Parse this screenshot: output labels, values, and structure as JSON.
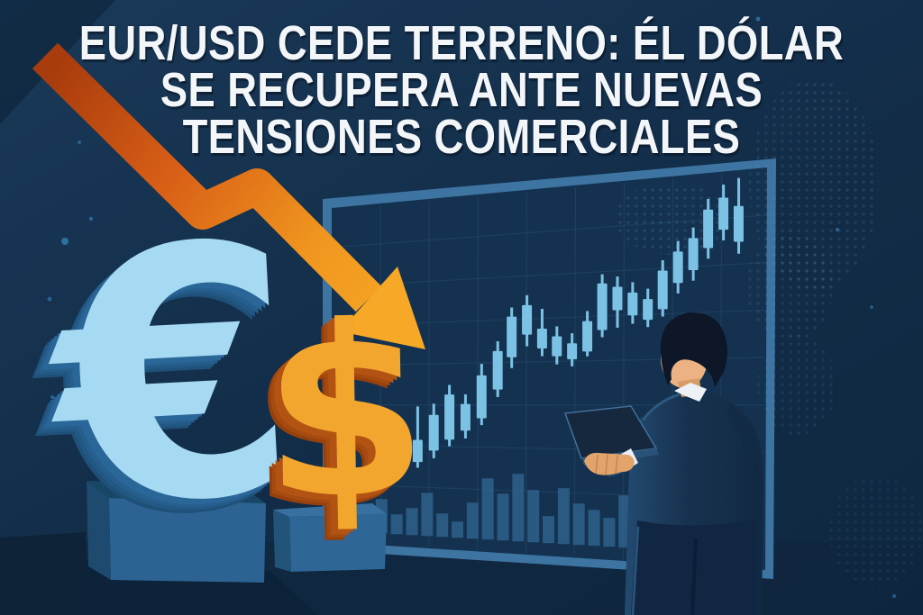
{
  "title": {
    "lines": [
      "EUR/USD CEDE TERRENO: ÉL DÓLAR",
      "SE RECUPERA ANTE NUEVAS",
      "TENSIONES COMERCIALES"
    ]
  },
  "symbols": {
    "euro": "€",
    "dollar": "$"
  },
  "palette": {
    "background": "#132e4a",
    "headline_text": "#f3f6f9",
    "arrow_dark": "#a93c0d",
    "arrow_mid": "#e2741c",
    "arrow_bright": "#f6a826",
    "euro_face": "#a6d9f2",
    "euro_side": "#2a6698",
    "dollar_face": "#f3a62e",
    "dollar_side": "#b25313",
    "board_frame": "#3d74a2",
    "board_fill": "#14324f",
    "grid_line": "#24496d",
    "candle": "#7cc2e5",
    "volume_bar": "#31648f",
    "pedestal_front": "#2d6392",
    "pedestal_top": "#174765",
    "suit": "#1b3a5c",
    "skin": "#ecb283",
    "hair": "#0d1727",
    "laptop": "#16283e"
  },
  "chart_data": {
    "type": "candlestick",
    "description": "Stylized rising price chart with pullbacks, drawn on the wall board",
    "legend_position": "none",
    "grid": true,
    "candles": [
      [
        0.088,
        0.69,
        0.715,
        0.785,
        0.81
      ],
      [
        0.124,
        0.7,
        0.73,
        0.775,
        0.8
      ],
      [
        0.161,
        0.637,
        0.664,
        0.762,
        0.781
      ],
      [
        0.198,
        0.594,
        0.69,
        0.754,
        0.77
      ],
      [
        0.235,
        0.586,
        0.618,
        0.72,
        0.742
      ],
      [
        0.271,
        0.533,
        0.56,
        0.688,
        0.707
      ],
      [
        0.308,
        0.56,
        0.587,
        0.662,
        0.684
      ],
      [
        0.345,
        0.475,
        0.507,
        0.627,
        0.646
      ],
      [
        0.382,
        0.413,
        0.44,
        0.547,
        0.568
      ],
      [
        0.414,
        0.321,
        0.346,
        0.458,
        0.488
      ],
      [
        0.449,
        0.289,
        0.316,
        0.397,
        0.429
      ],
      [
        0.484,
        0.328,
        0.382,
        0.436,
        0.457
      ],
      [
        0.518,
        0.377,
        0.404,
        0.458,
        0.48
      ],
      [
        0.553,
        0.397,
        0.424,
        0.467,
        0.486
      ],
      [
        0.588,
        0.339,
        0.366,
        0.447,
        0.46
      ],
      [
        0.622,
        0.243,
        0.267,
        0.391,
        0.41
      ],
      [
        0.657,
        0.251,
        0.278,
        0.34,
        0.386
      ],
      [
        0.692,
        0.268,
        0.295,
        0.355,
        0.377
      ],
      [
        0.727,
        0.287,
        0.314,
        0.368,
        0.387
      ],
      [
        0.761,
        0.215,
        0.242,
        0.342,
        0.361
      ],
      [
        0.796,
        0.168,
        0.195,
        0.276,
        0.303
      ],
      [
        0.831,
        0.136,
        0.163,
        0.245,
        0.272
      ],
      [
        0.865,
        0.066,
        0.093,
        0.191,
        0.218
      ],
      [
        0.9,
        0.033,
        0.066,
        0.147,
        0.174
      ],
      [
        0.935,
        0.02,
        0.09,
        0.18,
        0.21
      ]
    ],
    "volume": [
      [
        0.115,
        38
      ],
      [
        0.15,
        22
      ],
      [
        0.185,
        30
      ],
      [
        0.22,
        48
      ],
      [
        0.255,
        26
      ],
      [
        0.29,
        18
      ],
      [
        0.325,
        40
      ],
      [
        0.36,
        68
      ],
      [
        0.395,
        52
      ],
      [
        0.43,
        75
      ],
      [
        0.465,
        58
      ],
      [
        0.5,
        30
      ],
      [
        0.535,
        62
      ],
      [
        0.57,
        46
      ],
      [
        0.605,
        40
      ],
      [
        0.64,
        32
      ],
      [
        0.675,
        58
      ],
      [
        0.71,
        42
      ],
      [
        0.745,
        70
      ],
      [
        0.78,
        35
      ]
    ]
  }
}
